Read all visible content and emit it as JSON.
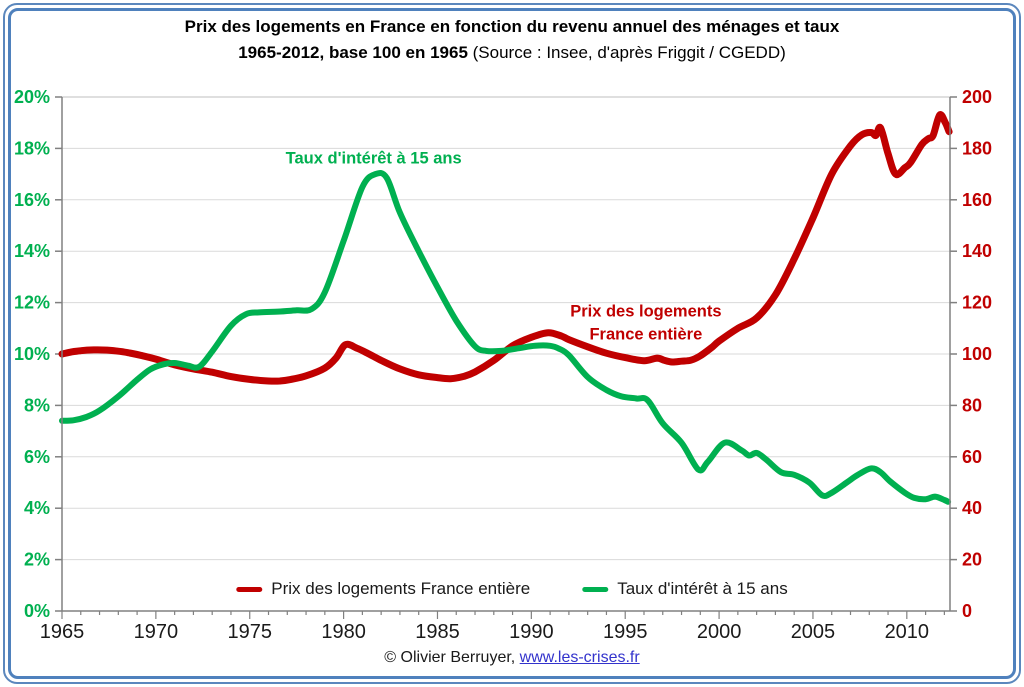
{
  "page": {
    "border_color": "#4f81bd",
    "background": "#ffffff"
  },
  "header": {
    "title_line1": "Prix des logements en France en fonction du revenu annuel des ménages et taux",
    "title_line2_bold": "1965-2012, base 100 en 1965",
    "title_line2_normal": " (Source : Insee, d'après Friggit / CGEDD)"
  },
  "footer": {
    "copyright_text": "© Olivier Berruyer, ",
    "link_text": "www.les-crises.fr"
  },
  "chart_data": {
    "type": "line",
    "title": "Prix des logements en France en fonction du revenu annuel des ménages et taux, 1965-2012, base 100 en 1965",
    "grid": "horizontal",
    "legend_position": "bottom-inside",
    "x_axis": {
      "range": [
        1965,
        2012.3
      ],
      "major_tick_years": [
        1965,
        1970,
        1975,
        1980,
        1985,
        1990,
        1995,
        2000,
        2005,
        2010
      ],
      "tick_labels": [
        "1965",
        "1970",
        "1975",
        "1980",
        "1985",
        "1990",
        "1995",
        "2000",
        "2005",
        "2010"
      ],
      "minor_tick_interval": 1,
      "label_color": "#1a1a1a"
    },
    "y_axis_left": {
      "range": [
        0,
        20
      ],
      "tick_interval": 2,
      "tick_labels": [
        "0%",
        "2%",
        "4%",
        "6%",
        "8%",
        "10%",
        "12%",
        "14%",
        "16%",
        "18%",
        "20%"
      ],
      "color": "#00B050"
    },
    "y_axis_right": {
      "range": [
        0,
        200
      ],
      "tick_interval": 20,
      "tick_labels": [
        "0",
        "20",
        "40",
        "60",
        "80",
        "100",
        "120",
        "140",
        "160",
        "180",
        "200"
      ],
      "color": "#C00000"
    },
    "series": [
      {
        "name": "Prix des logements France entière",
        "axis": "right",
        "color": "#C00000",
        "stroke_width": 7,
        "points": [
          [
            1965,
            100
          ],
          [
            1965.5,
            100.8
          ],
          [
            1966,
            101.3
          ],
          [
            1966.7,
            101.6
          ],
          [
            1967.4,
            101.5
          ],
          [
            1968,
            101.1
          ],
          [
            1968.6,
            100.4
          ],
          [
            1969.3,
            99.3
          ],
          [
            1970,
            98
          ],
          [
            1971,
            95.8
          ],
          [
            1972,
            94.2
          ],
          [
            1973,
            92.9
          ],
          [
            1974,
            91.2
          ],
          [
            1975,
            90.1
          ],
          [
            1976,
            89.5
          ],
          [
            1976.6,
            89.5
          ],
          [
            1977.2,
            90.1
          ],
          [
            1978,
            91.5
          ],
          [
            1979,
            94.5
          ],
          [
            1979.6,
            98.5
          ],
          [
            1980.1,
            103.6
          ],
          [
            1980.7,
            102.3
          ],
          [
            1981.3,
            100.2
          ],
          [
            1982,
            97.5
          ],
          [
            1983,
            94.2
          ],
          [
            1984,
            91.9
          ],
          [
            1985,
            90.8
          ],
          [
            1985.7,
            90.4
          ],
          [
            1986.4,
            91.3
          ],
          [
            1987,
            93
          ],
          [
            1988,
            97.5
          ],
          [
            1989,
            103.2
          ],
          [
            1990,
            106.5
          ],
          [
            1990.9,
            108.3
          ],
          [
            1991.6,
            107
          ],
          [
            1992,
            105.6
          ],
          [
            1993,
            102.8
          ],
          [
            1994,
            100.3
          ],
          [
            1995,
            98.6
          ],
          [
            1996,
            97.4
          ],
          [
            1996.7,
            98.4
          ],
          [
            1997.1,
            97.5
          ],
          [
            1997.5,
            96.9
          ],
          [
            1998,
            97.2
          ],
          [
            1998.5,
            97.6
          ],
          [
            1999,
            99.3
          ],
          [
            1999.6,
            102.5
          ],
          [
            2000,
            105
          ],
          [
            2001,
            110
          ],
          [
            2002,
            114
          ],
          [
            2003,
            123
          ],
          [
            2004,
            137
          ],
          [
            2005,
            153
          ],
          [
            2006,
            170
          ],
          [
            2007,
            181
          ],
          [
            2007.6,
            185.3
          ],
          [
            2008.1,
            186.2
          ],
          [
            2008.35,
            185
          ],
          [
            2008.6,
            188
          ],
          [
            2009,
            178
          ],
          [
            2009.4,
            170
          ],
          [
            2009.9,
            172.5
          ],
          [
            2010.2,
            174.5
          ],
          [
            2010.8,
            181.5
          ],
          [
            2011.15,
            183.8
          ],
          [
            2011.4,
            185
          ],
          [
            2011.75,
            193
          ],
          [
            2012.05,
            190
          ],
          [
            2012.25,
            186.5
          ]
        ]
      },
      {
        "name": "Taux d'intérêt à 15 ans",
        "axis": "left",
        "color": "#00B050",
        "stroke_width": 6,
        "points": [
          [
            1965,
            7.4
          ],
          [
            1965.6,
            7.42
          ],
          [
            1966.3,
            7.55
          ],
          [
            1967,
            7.8
          ],
          [
            1968,
            8.35
          ],
          [
            1969,
            9.0
          ],
          [
            1969.7,
            9.4
          ],
          [
            1970.4,
            9.6
          ],
          [
            1971,
            9.65
          ],
          [
            1971.7,
            9.55
          ],
          [
            1972.3,
            9.5
          ],
          [
            1973,
            10.1
          ],
          [
            1974,
            11.1
          ],
          [
            1974.8,
            11.55
          ],
          [
            1975.5,
            11.62
          ],
          [
            1976.5,
            11.65
          ],
          [
            1977.5,
            11.7
          ],
          [
            1978.3,
            11.75
          ],
          [
            1979,
            12.4
          ],
          [
            1980,
            14.4
          ],
          [
            1981,
            16.5
          ],
          [
            1981.7,
            17.0
          ],
          [
            1982.3,
            16.85
          ],
          [
            1983,
            15.5
          ],
          [
            1984,
            14.0
          ],
          [
            1985,
            12.6
          ],
          [
            1986,
            11.3
          ],
          [
            1987,
            10.3
          ],
          [
            1987.6,
            10.12
          ],
          [
            1988.4,
            10.12
          ],
          [
            1989.3,
            10.22
          ],
          [
            1990.2,
            10.32
          ],
          [
            1991,
            10.32
          ],
          [
            1991.5,
            10.2
          ],
          [
            1992,
            9.95
          ],
          [
            1993,
            9.1
          ],
          [
            1994,
            8.6
          ],
          [
            1994.8,
            8.35
          ],
          [
            1995.6,
            8.27
          ],
          [
            1996.2,
            8.2
          ],
          [
            1997,
            7.3
          ],
          [
            1998,
            6.55
          ],
          [
            1998.9,
            5.5
          ],
          [
            1999.4,
            5.8
          ],
          [
            2000.3,
            6.55
          ],
          [
            2001.2,
            6.25
          ],
          [
            2001.6,
            6.05
          ],
          [
            2002,
            6.15
          ],
          [
            2002.5,
            5.9
          ],
          [
            2003.3,
            5.4
          ],
          [
            2004,
            5.3
          ],
          [
            2004.8,
            5.0
          ],
          [
            2005.5,
            4.5
          ],
          [
            2006,
            4.6
          ],
          [
            2006.8,
            5.0
          ],
          [
            2007.4,
            5.3
          ],
          [
            2008.1,
            5.55
          ],
          [
            2008.6,
            5.4
          ],
          [
            2009.1,
            5.05
          ],
          [
            2009.9,
            4.6
          ],
          [
            2010.4,
            4.4
          ],
          [
            2011,
            4.35
          ],
          [
            2011.5,
            4.45
          ],
          [
            2012,
            4.32
          ],
          [
            2012.2,
            4.25
          ]
        ]
      }
    ],
    "annotations": [
      {
        "id": "taux-label",
        "lines": [
          "Taux d'intérêt à 15 ans"
        ],
        "color": "#00B050",
        "year": 1981.6,
        "value": 17.65,
        "axis": "left"
      },
      {
        "id": "prix-label",
        "lines": [
          "Prix des logements",
          "France entière"
        ],
        "color": "#C00000",
        "year": 1996.1,
        "value": 117,
        "axis": "right"
      }
    ],
    "style": {
      "gridline_color": "#dadada",
      "axis_color": "#808080",
      "plot_border_color": "#bfbfbf"
    }
  }
}
